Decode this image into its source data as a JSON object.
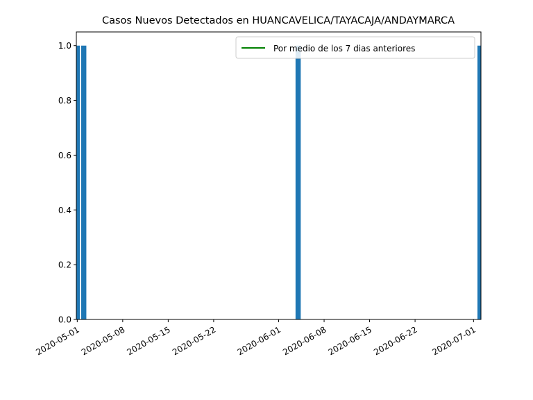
{
  "chart_data": {
    "type": "bar",
    "title": "Casos Nuevos Detectados en HUANCAVELICA/TAYACAJA/ANDAYMARCA",
    "xlabel": "",
    "ylabel": "",
    "x_axis": {
      "type": "date",
      "range": [
        "2020-05-01",
        "2020-07-02"
      ],
      "tick_labels": [
        "2020-05-01",
        "2020-05-08",
        "2020-05-15",
        "2020-05-22",
        "2020-06-01",
        "2020-06-08",
        "2020-06-15",
        "2020-06-22",
        "2020-07-01"
      ]
    },
    "y_axis": {
      "range": [
        0,
        1.05
      ],
      "tick_labels": [
        "0.0",
        "0.2",
        "0.4",
        "0.6",
        "0.8",
        "1.0"
      ]
    },
    "series": [
      {
        "values": [
          {
            "date": "2020-05-01",
            "value": 1
          },
          {
            "date": "2020-05-02",
            "value": 1
          },
          {
            "date": "2020-06-04",
            "value": 1
          },
          {
            "date": "2020-07-02",
            "value": 1
          }
        ],
        "color": "#1f77b4"
      }
    ],
    "line_series": [
      {
        "name": "Por medio de los 7 dias anteriores",
        "color": "#008000",
        "values": []
      }
    ],
    "legend": {
      "position": "top-right",
      "entries": [
        "Por medio de los 7 dias anteriores"
      ]
    },
    "grid": false
  }
}
